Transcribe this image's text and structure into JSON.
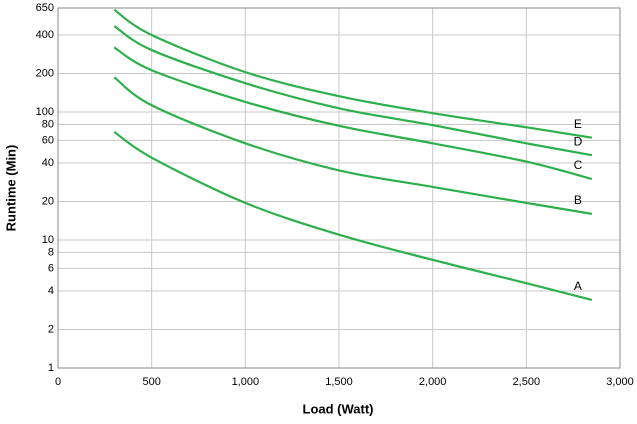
{
  "chart_data": {
    "type": "line",
    "x_label": "Load (Watt)",
    "y_label": "Runtime (Min)",
    "x": [
      300,
      500,
      1000,
      1500,
      2000,
      2500,
      2850
    ],
    "series": [
      {
        "name": "A",
        "color": "#2db04b",
        "values": [
          70,
          44,
          19.5,
          11,
          7,
          4.6,
          3.4
        ]
      },
      {
        "name": "B",
        "color": "#2db04b",
        "values": [
          187,
          113,
          57,
          35,
          26,
          19.5,
          16
        ]
      },
      {
        "name": "C",
        "color": "#2db04b",
        "values": [
          320,
          212,
          120,
          78,
          57,
          41,
          30
        ]
      },
      {
        "name": "D",
        "color": "#2db04b",
        "values": [
          470,
          305,
          168,
          107,
          79,
          57,
          46
        ]
      },
      {
        "name": "E",
        "color": "#2db04b",
        "values": [
          630,
          400,
          205,
          133,
          98,
          76,
          63
        ]
      }
    ],
    "xlim": [
      0,
      3000
    ],
    "xticks": [
      0,
      500,
      {
        "value": 1000,
        "label": "1,000"
      },
      {
        "value": 1500,
        "label": "1,500"
      },
      {
        "value": 2000,
        "label": "2,000"
      },
      {
        "value": 2500,
        "label": "2,500"
      },
      {
        "value": 3000,
        "label": "3,000"
      }
    ],
    "ylim": [
      1,
      650
    ],
    "ylog": true,
    "yticks": [
      1,
      2,
      4,
      6,
      8,
      10,
      20,
      40,
      60,
      80,
      100,
      200,
      400,
      650
    ],
    "grid": true
  }
}
